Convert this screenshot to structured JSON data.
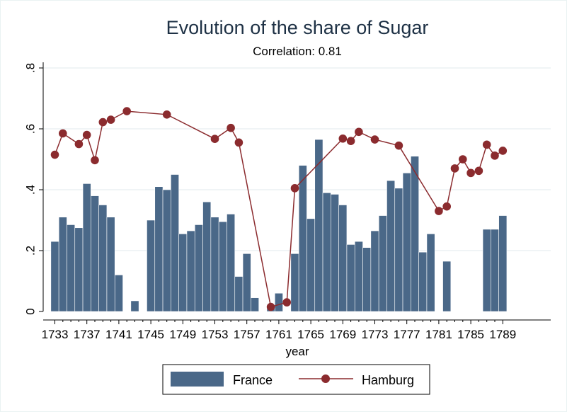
{
  "chart_data": {
    "type": "bar+line",
    "title": "Evolution of the share of Sugar",
    "subtitle": "Correlation: 0.81",
    "xlabel": "year",
    "ylabel": "",
    "xlim": [
      1732,
      1790
    ],
    "ylim": [
      0,
      0.8
    ],
    "x_ticks": [
      1733,
      1737,
      1741,
      1745,
      1749,
      1753,
      1757,
      1761,
      1765,
      1769,
      1773,
      1777,
      1781,
      1785,
      1789
    ],
    "y_ticks": [
      0,
      0.2,
      0.4,
      0.6,
      0.8
    ],
    "y_tick_labels": [
      "0",
      ".2",
      ".4",
      ".6",
      ".8"
    ],
    "grid": "horizontal",
    "legend": "bottom",
    "series": [
      {
        "name": "France",
        "type": "bar",
        "color": "#4a6888",
        "points": [
          [
            1733,
            0.23
          ],
          [
            1734,
            0.31
          ],
          [
            1735,
            0.285
          ],
          [
            1736,
            0.275
          ],
          [
            1737,
            0.42
          ],
          [
            1738,
            0.38
          ],
          [
            1739,
            0.35
          ],
          [
            1740,
            0.31
          ],
          [
            1741,
            0.12
          ],
          [
            1743,
            0.035
          ],
          [
            1745,
            0.3
          ],
          [
            1746,
            0.41
          ],
          [
            1747,
            0.4
          ],
          [
            1748,
            0.45
          ],
          [
            1749,
            0.255
          ],
          [
            1750,
            0.265
          ],
          [
            1751,
            0.285
          ],
          [
            1752,
            0.36
          ],
          [
            1753,
            0.31
          ],
          [
            1754,
            0.295
          ],
          [
            1755,
            0.32
          ],
          [
            1756,
            0.115
          ],
          [
            1757,
            0.19
          ],
          [
            1758,
            0.045
          ],
          [
            1760,
            0.015
          ],
          [
            1761,
            0.06
          ],
          [
            1763,
            0.19
          ],
          [
            1764,
            0.48
          ],
          [
            1765,
            0.305
          ],
          [
            1766,
            0.565
          ],
          [
            1767,
            0.39
          ],
          [
            1768,
            0.385
          ],
          [
            1769,
            0.35
          ],
          [
            1770,
            0.22
          ],
          [
            1771,
            0.23
          ],
          [
            1772,
            0.21
          ],
          [
            1773,
            0.265
          ],
          [
            1774,
            0.315
          ],
          [
            1775,
            0.43
          ],
          [
            1776,
            0.405
          ],
          [
            1777,
            0.455
          ],
          [
            1778,
            0.51
          ],
          [
            1779,
            0.195
          ],
          [
            1780,
            0.255
          ],
          [
            1782,
            0.165
          ],
          [
            1787,
            0.27
          ],
          [
            1788,
            0.27
          ],
          [
            1789,
            0.315
          ]
        ]
      },
      {
        "name": "Hamburg",
        "type": "line",
        "color": "#8b2b2e",
        "points": [
          [
            1733,
            0.515
          ],
          [
            1734,
            0.585
          ],
          [
            1736,
            0.55
          ],
          [
            1737,
            0.58
          ],
          [
            1738,
            0.497
          ],
          [
            1739,
            0.622
          ],
          [
            1740,
            0.63
          ],
          [
            1742,
            0.658
          ],
          [
            1747,
            0.647
          ],
          [
            1753,
            0.567
          ],
          [
            1755,
            0.603
          ],
          [
            1756,
            0.555
          ],
          [
            1760,
            0.015
          ],
          [
            1762,
            0.03
          ],
          [
            1763,
            0.405
          ],
          [
            1769,
            0.568
          ],
          [
            1770,
            0.56
          ],
          [
            1771,
            0.59
          ],
          [
            1773,
            0.565
          ],
          [
            1776,
            0.545
          ],
          [
            1781,
            0.33
          ],
          [
            1782,
            0.345
          ],
          [
            1783,
            0.47
          ],
          [
            1784,
            0.5
          ],
          [
            1785,
            0.455
          ],
          [
            1786,
            0.462
          ],
          [
            1787,
            0.548
          ],
          [
            1788,
            0.512
          ],
          [
            1789,
            0.528
          ]
        ]
      }
    ]
  }
}
